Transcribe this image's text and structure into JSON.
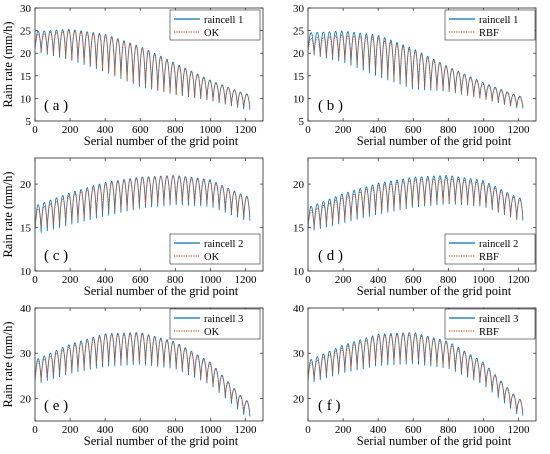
{
  "colors": {
    "observed": "#0072BD",
    "interpolated": "#D95319"
  },
  "chart_data": [
    {
      "type": "line",
      "panel": "( a )",
      "xlabel": "Serial number of the grid point",
      "ylabel": "Rain rate (mm/h)",
      "xlim": [
        0,
        1300
      ],
      "ylim": [
        5,
        30
      ],
      "xticks": [
        0,
        200,
        400,
        600,
        800,
        1000,
        1200
      ],
      "yticks": [
        5,
        10,
        15,
        20,
        25,
        30
      ],
      "legend_position": "top-right",
      "series": [
        {
          "name": "raincell 1",
          "style": "solid",
          "color": "#0072BD",
          "x": [
            0,
            200,
            400,
            600,
            800,
            1000,
            1200
          ],
          "upper": [
            24.8,
            25.3,
            24.2,
            21.5,
            17.8,
            14.0,
            11.0
          ],
          "lower": [
            20.3,
            18.5,
            15.8,
            12.5,
            10.8,
            9.5,
            7.5
          ]
        },
        {
          "name": "OK",
          "style": "dotted",
          "color": "#D95319",
          "x": [
            0,
            200,
            400,
            600,
            800,
            1000,
            1200
          ],
          "upper": [
            24.2,
            25.0,
            24.0,
            21.3,
            17.5,
            13.8,
            10.8
          ],
          "lower": [
            20.8,
            19.0,
            16.3,
            13.0,
            11.0,
            9.8,
            8.0
          ]
        }
      ]
    },
    {
      "type": "line",
      "panel": "( b )",
      "xlabel": "Serial number of the grid point",
      "ylabel": "",
      "xlim": [
        0,
        1300
      ],
      "ylim": [
        5,
        30
      ],
      "xticks": [
        0,
        200,
        400,
        600,
        800,
        1000,
        1200
      ],
      "yticks": [
        5,
        10,
        15,
        20,
        25,
        30
      ],
      "legend_position": "top-right",
      "series": [
        {
          "name": "raincell 1",
          "style": "solid",
          "color": "#0072BD",
          "x": [
            0,
            200,
            400,
            600,
            800,
            1000,
            1200
          ],
          "upper": [
            24.5,
            24.9,
            24.0,
            21.0,
            17.0,
            13.5,
            10.5
          ],
          "lower": [
            19.8,
            18.0,
            14.8,
            12.0,
            11.5,
            9.8,
            7.8
          ]
        },
        {
          "name": "RBF",
          "style": "dotted",
          "color": "#D95319",
          "x": [
            0,
            200,
            400,
            600,
            800,
            1000,
            1200
          ],
          "upper": [
            23.2,
            24.0,
            23.4,
            20.5,
            16.8,
            13.2,
            10.3
          ],
          "lower": [
            20.2,
            18.8,
            15.6,
            12.6,
            11.8,
            10.0,
            8.0
          ]
        }
      ]
    },
    {
      "type": "line",
      "panel": "( c )",
      "xlabel": "Serial number of the grid point",
      "ylabel": "Rain rate (mm/h)",
      "xlim": [
        0,
        1300
      ],
      "ylim": [
        10,
        23
      ],
      "xticks": [
        0,
        200,
        400,
        600,
        800,
        1000,
        1200
      ],
      "yticks": [
        10,
        15,
        20
      ],
      "legend_position": "bottom-right",
      "series": [
        {
          "name": "raincell 2",
          "style": "solid",
          "color": "#0072BD",
          "x": [
            0,
            200,
            400,
            600,
            800,
            1000,
            1200
          ],
          "upper": [
            17.5,
            19.0,
            20.2,
            20.8,
            21.0,
            20.5,
            18.6
          ],
          "lower": [
            14.2,
            15.3,
            16.3,
            17.2,
            17.6,
            17.4,
            15.8
          ]
        },
        {
          "name": "OK",
          "style": "dotted",
          "color": "#D95319",
          "x": [
            0,
            200,
            400,
            600,
            800,
            1000,
            1200
          ],
          "upper": [
            17.0,
            18.7,
            20.0,
            20.7,
            20.9,
            20.3,
            18.5
          ],
          "lower": [
            14.8,
            15.8,
            16.8,
            17.6,
            18.0,
            17.8,
            16.2
          ]
        }
      ]
    },
    {
      "type": "line",
      "panel": "( d )",
      "xlabel": "Serial number of the grid point",
      "ylabel": "",
      "xlim": [
        0,
        1300
      ],
      "ylim": [
        10,
        23
      ],
      "xticks": [
        0,
        200,
        400,
        600,
        800,
        1000,
        1200
      ],
      "yticks": [
        10,
        15,
        20
      ],
      "legend_position": "bottom-right",
      "series": [
        {
          "name": "raincell 2",
          "style": "solid",
          "color": "#0072BD",
          "x": [
            0,
            200,
            400,
            600,
            800,
            1000,
            1200
          ],
          "upper": [
            17.3,
            18.9,
            20.1,
            20.8,
            21.0,
            20.4,
            18.4
          ],
          "lower": [
            14.5,
            15.5,
            16.5,
            17.3,
            17.7,
            17.4,
            15.8
          ]
        },
        {
          "name": "RBF",
          "style": "dotted",
          "color": "#D95319",
          "x": [
            0,
            200,
            400,
            600,
            800,
            1000,
            1200
          ],
          "upper": [
            16.8,
            18.5,
            19.8,
            20.5,
            20.7,
            20.1,
            18.2
          ],
          "lower": [
            15.0,
            15.9,
            16.9,
            17.6,
            18.0,
            17.7,
            16.0
          ]
        }
      ]
    },
    {
      "type": "line",
      "panel": "( e )",
      "xlabel": "Serial number of the grid point",
      "ylabel": "Rain rate (mm/h)",
      "xlim": [
        0,
        1300
      ],
      "ylim": [
        15,
        40
      ],
      "xticks": [
        0,
        200,
        400,
        600,
        800,
        1000,
        1200
      ],
      "yticks": [
        20,
        30,
        40
      ],
      "legend_position": "top-right",
      "series": [
        {
          "name": "raincell 3",
          "style": "solid",
          "color": "#0072BD",
          "x": [
            0,
            200,
            400,
            600,
            800,
            1000,
            1200
          ],
          "upper": [
            28.5,
            32.0,
            34.3,
            34.6,
            32.5,
            28.0,
            19.5
          ],
          "lower": [
            23.0,
            25.5,
            27.0,
            27.5,
            26.5,
            23.0,
            16.0
          ]
        },
        {
          "name": "OK",
          "style": "dotted",
          "color": "#D95319",
          "x": [
            0,
            200,
            400,
            600,
            800,
            1000,
            1200
          ],
          "upper": [
            27.8,
            31.5,
            34.0,
            34.3,
            32.2,
            27.7,
            19.3
          ],
          "lower": [
            23.8,
            26.2,
            27.8,
            28.2,
            27.0,
            23.5,
            16.8
          ]
        }
      ]
    },
    {
      "type": "line",
      "panel": "( f )",
      "xlabel": "Serial number of the grid point",
      "ylabel": "",
      "xlim": [
        0,
        1300
      ],
      "ylim": [
        15,
        40
      ],
      "xticks": [
        0,
        200,
        400,
        600,
        800,
        1000,
        1200
      ],
      "yticks": [
        20,
        30,
        40
      ],
      "legend_position": "top-right",
      "series": [
        {
          "name": "raincell 3",
          "style": "solid",
          "color": "#0072BD",
          "x": [
            0,
            200,
            400,
            600,
            800,
            1000,
            1200
          ],
          "upper": [
            28.3,
            31.8,
            34.2,
            34.6,
            32.6,
            28.0,
            19.8
          ],
          "lower": [
            23.2,
            25.6,
            27.2,
            27.6,
            26.6,
            23.0,
            16.2
          ]
        },
        {
          "name": "RBF",
          "style": "dotted",
          "color": "#D95319",
          "x": [
            0,
            200,
            400,
            600,
            800,
            1000,
            1200
          ],
          "upper": [
            27.5,
            31.2,
            33.8,
            34.2,
            32.2,
            27.6,
            19.5
          ],
          "lower": [
            24.0,
            26.3,
            28.0,
            28.4,
            27.2,
            23.6,
            17.0
          ]
        }
      ]
    }
  ]
}
